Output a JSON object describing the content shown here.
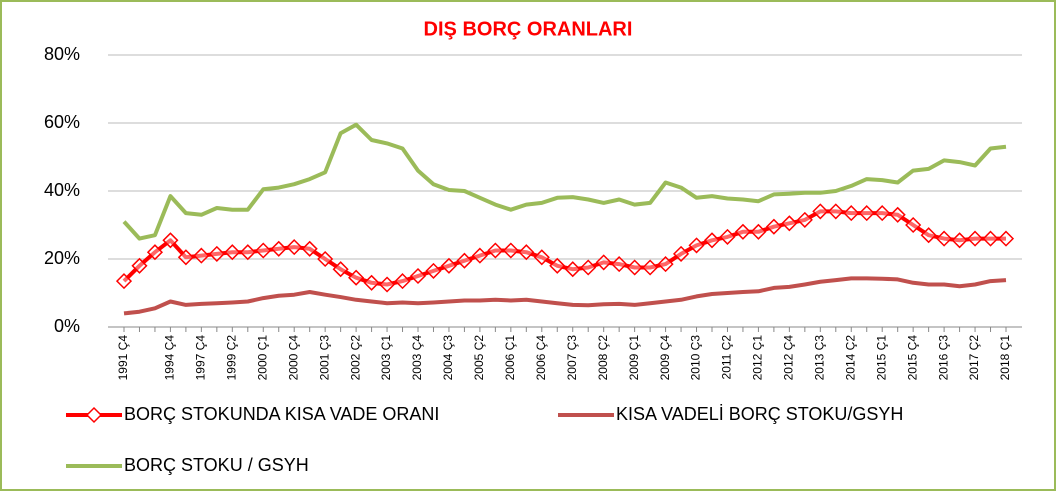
{
  "chart_data": {
    "type": "line",
    "title": "DIŞ BORÇ ORANLARI",
    "categories": [
      "1991 Ç4",
      null,
      null,
      "1994 Ç4",
      null,
      "1997 Ç4",
      null,
      "1999 Ç2",
      null,
      "2000 Ç1",
      null,
      "2000 Ç4",
      null,
      "2001 Ç3",
      null,
      "2002 Ç2",
      null,
      "2003 Ç1",
      null,
      "2003 Ç4",
      null,
      "2004 Ç3",
      null,
      "2005 Ç2",
      null,
      "2006 Ç1",
      null,
      "2006 Ç4",
      null,
      "2007 Ç3",
      null,
      "2008 Ç2",
      null,
      "2009 Ç1",
      null,
      "2009 Ç4",
      null,
      "2010 Ç3",
      null,
      "2011 Ç2",
      null,
      "2012 Ç1",
      null,
      "2012 Ç4",
      null,
      "2013 Ç3",
      null,
      "2014 Ç2",
      null,
      "2015 Ç1",
      null,
      "2015 Ç4",
      null,
      "2016 Ç3",
      null,
      "2017 Ç2",
      null,
      "2018 Ç1"
    ],
    "series": [
      {
        "name": "BORÇ STOKUNDA KISA VADE ORANI",
        "color": "#ff0000",
        "marker": "diamond",
        "values": [
          13.5,
          18,
          22,
          25.5,
          20.5,
          21,
          21.5,
          22,
          22,
          22.5,
          23,
          23.5,
          23,
          20,
          17,
          14.5,
          13,
          12.5,
          13.5,
          15,
          16.5,
          18,
          19.5,
          21,
          22.5,
          22.5,
          22,
          20.5,
          18,
          17,
          17.5,
          19,
          18.5,
          17.5,
          17.5,
          18.5,
          21.5,
          24,
          25.5,
          26.5,
          28,
          28,
          29.5,
          30.5,
          31.5,
          34,
          34,
          33.5,
          33.5,
          33.5,
          33,
          30,
          27,
          26,
          25.5,
          26,
          26,
          26
        ]
      },
      {
        "name": "KISA VADELİ BORÇ STOKU/GSYH",
        "color": "#c0504d",
        "values": [
          4,
          4.5,
          5.5,
          7.5,
          6.5,
          6.8,
          7,
          7.2,
          7.5,
          8.5,
          9.2,
          9.5,
          10.3,
          9.5,
          8.8,
          8,
          7.5,
          7,
          7.2,
          7,
          7.2,
          7.5,
          7.8,
          7.8,
          8,
          7.8,
          8,
          7.5,
          7,
          6.5,
          6.4,
          6.7,
          6.8,
          6.5,
          7,
          7.5,
          8,
          9,
          9.7,
          10,
          10.3,
          10.5,
          11.5,
          11.8,
          12.5,
          13.3,
          13.8,
          14.3,
          14.3,
          14.2,
          14,
          13,
          12.5,
          12.5,
          12,
          12.5,
          13.5,
          13.8
        ]
      },
      {
        "name": "BORÇ STOKU / GSYH",
        "color": "#9bbb59",
        "values": [
          31,
          26,
          27,
          38.5,
          33.5,
          33,
          35,
          34.5,
          34.5,
          40.5,
          41,
          42,
          43.5,
          45.5,
          57,
          59.5,
          55,
          54,
          52.5,
          46,
          42,
          40.3,
          40,
          38,
          36,
          34.5,
          36,
          36.5,
          38,
          38.2,
          37.5,
          36.5,
          37.5,
          36,
          36.5,
          42.5,
          41,
          38,
          38.5,
          37.8,
          37.5,
          37,
          39,
          39.2,
          39.5,
          39.5,
          40,
          41.5,
          43.5,
          43.2,
          42.5,
          46,
          46.5,
          49,
          48.5,
          47.5,
          52.5,
          53
        ]
      }
    ],
    "ylim": [
      0,
      80
    ],
    "yticks": [
      {
        "value": 0,
        "label": "0%"
      },
      {
        "value": 20,
        "label": "20%"
      },
      {
        "value": 40,
        "label": "40%"
      },
      {
        "value": 60,
        "label": "60%"
      },
      {
        "value": 80,
        "label": "80%"
      }
    ],
    "grid": true,
    "legend": "bottom"
  }
}
